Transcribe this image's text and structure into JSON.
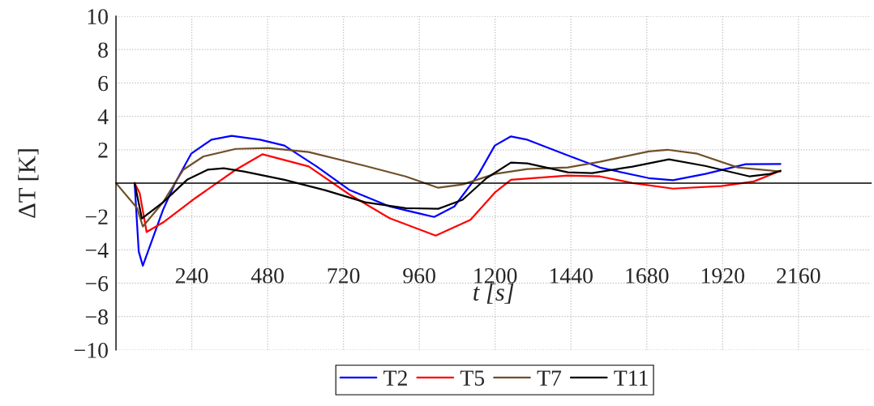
{
  "chart_data": {
    "type": "line",
    "xlabel": "t [s]",
    "ylabel": "ΔT [K]",
    "xlim": [
      0,
      2390
    ],
    "ylim": [
      -10,
      10
    ],
    "xticks": [
      240,
      480,
      720,
      960,
      1200,
      1440,
      1680,
      1920,
      2160
    ],
    "yticks": [
      10,
      8,
      6,
      4,
      2,
      {
        "value": -2,
        "label": "−2"
      },
      {
        "value": -4,
        "label": "−4"
      },
      {
        "value": -6,
        "label": "−6"
      },
      {
        "value": -8,
        "label": "−8"
      },
      {
        "value": -10,
        "label": "−10"
      }
    ],
    "grid": true,
    "legend": "bottom",
    "marker": "none",
    "line_style": "solid",
    "series": [
      {
        "name": "T2",
        "color": "#0000ff",
        "x": [
          59,
          72,
          85,
          149,
          187,
          238,
          302,
          366,
          456,
          533,
          635,
          738,
          866,
          1007,
          1071,
          1148,
          1199,
          1250,
          1302,
          1430,
          1532,
          1686,
          1763,
          1865,
          1993,
          2103
        ],
        "values": [
          0,
          -4.1,
          -4.95,
          -1.6,
          0,
          1.76,
          2.6,
          2.83,
          2.6,
          2.25,
          1.0,
          -0.4,
          -1.4,
          -2.03,
          -1.4,
          0.55,
          2.25,
          2.8,
          2.6,
          1.66,
          0.93,
          0.3,
          0.17,
          0.55,
          1.13,
          1.15
        ]
      },
      {
        "name": "T5",
        "color": "#ff0000",
        "x": [
          59,
          75,
          97,
          149,
          251,
          379,
          464,
          610,
          738,
          866,
          1012,
          1122,
          1199,
          1250,
          1430,
          1532,
          1635,
          1763,
          1916,
          2019,
          2103
        ],
        "values": [
          0,
          -0.6,
          -2.93,
          -2.36,
          -0.9,
          0.8,
          1.73,
          1.0,
          -0.67,
          -2.1,
          -3.15,
          -2.2,
          -0.57,
          0.2,
          0.45,
          0.4,
          0,
          -0.33,
          -0.18,
          0.1,
          0.74
        ]
      },
      {
        "name": "T7",
        "color": "#70502a",
        "x": [
          0,
          67,
          85,
          149,
          213,
          277,
          379,
          482,
          610,
          789,
          917,
          1020,
          1097,
          1199,
          1302,
          1430,
          1532,
          1686,
          1745,
          1840,
          1968,
          2103
        ],
        "values": [
          0,
          -1.5,
          -2.6,
          -1.15,
          0.8,
          1.6,
          2.05,
          2.1,
          1.86,
          1.03,
          0.4,
          -0.28,
          -0.08,
          0.55,
          0.84,
          0.94,
          1.28,
          1.9,
          2.0,
          1.76,
          0.94,
          0.7
        ]
      },
      {
        "name": "T11",
        "color": "#000000",
        "x": [
          59,
          82,
          149,
          225,
          290,
          341,
          405,
          533,
          661,
          789,
          917,
          1020,
          1097,
          1173,
          1250,
          1302,
          1430,
          1507,
          1635,
          1750,
          1865,
          2006,
          2070,
          2103
        ],
        "values": [
          0,
          -2.12,
          -1.15,
          0.2,
          0.8,
          0.89,
          0.7,
          0.2,
          -0.42,
          -1.15,
          -1.5,
          -1.54,
          -1.0,
          0.3,
          1.23,
          1.18,
          0.65,
          0.6,
          0.99,
          1.42,
          1.03,
          0.4,
          0.55,
          0.74
        ]
      }
    ]
  }
}
